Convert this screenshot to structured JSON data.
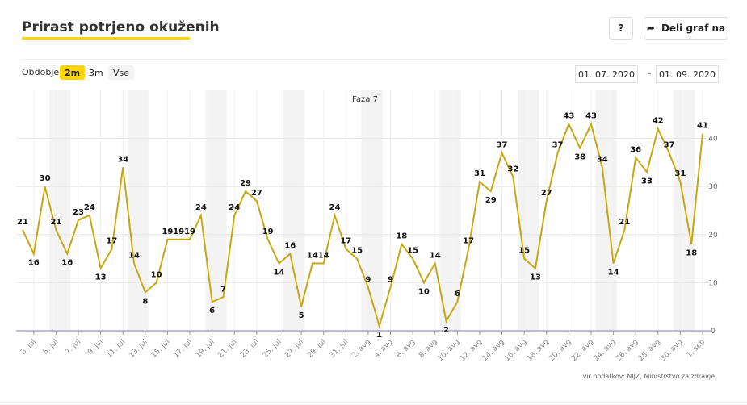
{
  "header": {
    "title": "Prirast potrjeno okuženih",
    "help": "?",
    "share": "Deli graf na"
  },
  "controls": {
    "period_label": "Obdobje",
    "options": [
      "2m",
      "3m",
      "Vse"
    ],
    "date_from": "01. 07. 2020",
    "date_dash": "–",
    "date_to": "01. 09. 2020"
  },
  "source": "vir podatkov: NIJZ, Ministrstvo za zdravje",
  "chart_data": {
    "type": "line",
    "annotation": "Faza 7",
    "color": "#c8a812",
    "categories": [
      null,
      "3. jul",
      null,
      "5. jul",
      null,
      "7. jul",
      null,
      "9. jul",
      null,
      "11. jul",
      null,
      "13. jul",
      null,
      "15. jul",
      null,
      "17. jul",
      null,
      "19. jul",
      null,
      "21. jul",
      null,
      "23. jul",
      null,
      "25. jul",
      null,
      "27. jul",
      null,
      "29. jul",
      null,
      "31. jul",
      null,
      "2. avg",
      null,
      "4. avg",
      null,
      "6. avg",
      null,
      "8. avg",
      null,
      "10. avg",
      null,
      "12. avg",
      null,
      "14. avg",
      null,
      "16. avg",
      null,
      "18. avg",
      null,
      "20. avg",
      null,
      "22. avg",
      null,
      "24. avg",
      null,
      "26. avg",
      null,
      "28. avg",
      null,
      "30. avg",
      null,
      "1. sep"
    ],
    "values": [
      21,
      16,
      30,
      21,
      16,
      23,
      24,
      13,
      17,
      34,
      14,
      8,
      10,
      19,
      19,
      19,
      24,
      6,
      7,
      24,
      29,
      27,
      19,
      14,
      16,
      5,
      14,
      14,
      24,
      17,
      15,
      9,
      1,
      9,
      18,
      15,
      10,
      14,
      2,
      6,
      17,
      31,
      29,
      37,
      32,
      15,
      13,
      27,
      37,
      43,
      38,
      43,
      34,
      14,
      21,
      36,
      33,
      42,
      37,
      31,
      18,
      41
    ],
    "ylim": [
      0,
      50
    ],
    "yticks": [
      0,
      10,
      20,
      30,
      40
    ],
    "grid": true
  }
}
